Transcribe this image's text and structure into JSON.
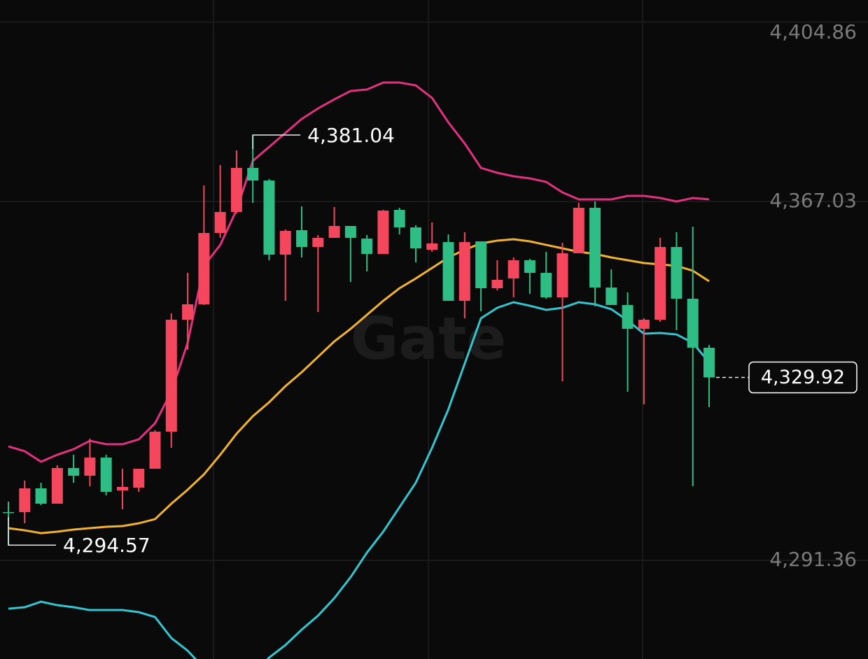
{
  "chart_data": {
    "type": "candlestick",
    "watermark": "Gate",
    "up_color": "#f4475e",
    "down_color": "#2ebd85",
    "open": [
      4301.53,
      4301.53,
      4306.54,
      4303.3,
      4310.82,
      4309.2,
      4313.03,
      4306.1,
      4306.69,
      4310.67,
      4318.49,
      4342.09,
      4345.34,
      4360.38,
      4364.81,
      4374.1,
      4371.44,
      4355.81,
      4360.97,
      4357.43,
      4359.35,
      4361.86,
      4359.2,
      4355.96,
      4365.25,
      4361.56,
      4356.84,
      4358.46,
      4346.07,
      4358.61,
      4348.73,
      4350.79,
      4354.63,
      4351.97,
      4346.81,
      4356.1,
      4365.69,
      4348.88,
      4345.19,
      4340.17,
      4342.09,
      4357.43,
      4346.52,
      4336.19
    ],
    "high": [
      4303.74,
      4308.17,
      4307.72,
      4311.41,
      4313.62,
      4317.02,
      4313.62,
      4310.67,
      4310.67,
      4318.79,
      4343.42,
      4351.97,
      4370.41,
      4374.69,
      4377.79,
      4381.04,
      4371.74,
      4361.12,
      4365.99,
      4359.94,
      4365.84,
      4361.86,
      4359.94,
      4365.25,
      4365.69,
      4362.0,
      4362.59,
      4360.09,
      4360.53,
      4358.61,
      4354.63,
      4355.22,
      4354.92,
      4356.4,
      4358.32,
      4366.72,
      4367.02,
      4352.71,
      4347.84,
      4342.39,
      4359.35,
      4360.53,
      4361.71,
      4336.78
    ],
    "low": [
      4294.57,
      4299.17,
      4303.0,
      4303.3,
      4307.72,
      4306.99,
      4305.07,
      4302.12,
      4305.81,
      4310.67,
      4315.1,
      4335.75,
      4345.19,
      4359.35,
      4364.51,
      4366.72,
      4354.63,
      4346.07,
      4355.22,
      4343.71,
      4359.35,
      4350.06,
      4352.27,
      4355.96,
      4360.09,
      4354.19,
      4356.4,
      4346.07,
      4342.39,
      4343.86,
      4348.29,
      4346.81,
      4347.55,
      4346.52,
      4329.11,
      4356.1,
      4344.89,
      4345.19,
      4326.9,
      4324.24,
      4341.65,
      4339.88,
      4306.99,
      4323.65
    ],
    "close": [
      4301.38,
      4306.54,
      4303.3,
      4310.82,
      4309.2,
      4313.03,
      4305.81,
      4306.84,
      4310.67,
      4318.49,
      4342.09,
      4345.34,
      4360.38,
      4364.81,
      4374.1,
      4371.44,
      4355.81,
      4360.82,
      4357.43,
      4359.35,
      4361.86,
      4359.35,
      4355.96,
      4365.1,
      4361.56,
      4357.14,
      4358.17,
      4346.07,
      4358.46,
      4348.73,
      4350.5,
      4354.63,
      4351.97,
      4346.81,
      4356.1,
      4365.69,
      4348.88,
      4345.19,
      4340.17,
      4342.09,
      4357.43,
      4346.52,
      4336.19,
      4329.92
    ],
    "lines": [
      {
        "color": "#e2317e",
        "values": [
          4315.39,
          4314.36,
          4312.15,
          4313.62,
          4314.8,
          4316.57,
          4315.84,
          4315.84,
          4316.87,
          4320.26,
          4326.9,
          4337.22,
          4353.45,
          4357.87,
          4365.25,
          4375.57,
          4378.52,
          4381.47,
          4384.42,
          4386.64,
          4388.55,
          4390.32,
          4390.62,
          4392.09,
          4392.09,
          4391.5,
          4388.85,
          4383.69,
          4379.26,
          4374.1,
          4373.07,
          4372.33,
          4371.89,
          4371.15,
          4368.94,
          4367.46,
          4367.46,
          4367.46,
          4368.2,
          4368.2,
          4367.76,
          4367.02,
          4367.76,
          4367.46
        ]
      },
      {
        "color": "#f1b22f",
        "values": [
          4298.14,
          4297.69,
          4297.1,
          4297.4,
          4297.84,
          4298.14,
          4298.43,
          4298.58,
          4299.17,
          4300.05,
          4303.3,
          4306.25,
          4309.49,
          4313.62,
          4318.05,
          4321.74,
          4324.69,
          4328.08,
          4331.03,
          4334.27,
          4337.52,
          4340.17,
          4343.12,
          4346.07,
          4348.73,
          4350.79,
          4353.01,
          4355.22,
          4356.84,
          4358.17,
          4358.76,
          4359.05,
          4358.61,
          4357.87,
          4357.14,
          4356.4,
          4355.96,
          4355.22,
          4354.63,
          4354.04,
          4353.74,
          4353.45,
          4352.42,
          4350.2
        ]
      },
      {
        "color": "#33c6d0",
        "values": [
          4281.17,
          4281.47,
          4282.65,
          4281.91,
          4281.47,
          4280.88,
          4280.88,
          4280.88,
          4280.44,
          4279.4,
          4274.98,
          4272.32,
          4268.64,
          4265.69,
          4264.21,
          4267.16,
          4270.85,
          4273.5,
          4276.75,
          4279.7,
          4283.39,
          4287.81,
          4292.97,
          4297.4,
          4302.56,
          4307.72,
          4315.1,
          4323.21,
          4332.8,
          4342.39,
          4344.6,
          4345.78,
          4345.04,
          4344.16,
          4344.6,
          4345.78,
          4345.34,
          4344.3,
          4341.94,
          4339.14,
          4339.29,
          4338.99,
          4337.22,
          4333.09
        ]
      }
    ],
    "ylim": [
      4270.56,
      4409.5
    ],
    "yticks": [
      {
        "value": 4404.86,
        "label": "4,404.86"
      },
      {
        "value": 4367.03,
        "label": "4,367.03"
      },
      {
        "value": 4291.36,
        "label": "4,291.36"
      }
    ],
    "grid": true,
    "annotations": [
      {
        "value": 4381.04,
        "label": "4,381.04"
      },
      {
        "value": 4294.57,
        "label": "4,294.57"
      }
    ],
    "last_price": {
      "value": 4329.92,
      "label": "4,329.92"
    }
  }
}
